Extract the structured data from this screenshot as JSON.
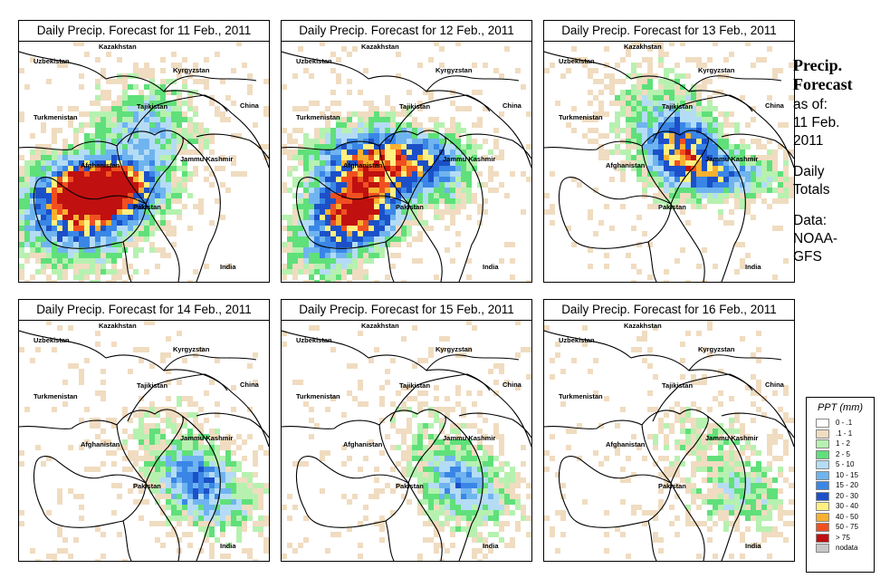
{
  "panels": [
    {
      "title": "Daily Precip. Forecast for  11 Feb., 2011",
      "intensity": 1.0,
      "focus": "west"
    },
    {
      "title": "Daily Precip. Forecast for  12 Feb., 2011",
      "intensity": 1.0,
      "focus": "southwest"
    },
    {
      "title": "Daily Precip. Forecast for  13 Feb., 2011",
      "intensity": 0.75,
      "focus": "northeast"
    },
    {
      "title": "Daily Precip. Forecast for  14 Feb., 2011",
      "intensity": 0.55,
      "focus": "east"
    },
    {
      "title": "Daily Precip. Forecast for  15 Feb., 2011",
      "intensity": 0.45,
      "focus": "east"
    },
    {
      "title": "Daily Precip. Forecast for  16 Feb., 2011",
      "intensity": 0.4,
      "focus": "southeast"
    }
  ],
  "map_labels": {
    "kazakhstan": "Kazakhstan",
    "uzbekistan": "Uzbekistan",
    "kyrgyzstan": "Kyrgyzstan",
    "tajikistan": "Tajikistan",
    "china": "China",
    "turkmenistan": "Turkmenistan",
    "afghanistan": "Afghanistan",
    "jammu_kashmir": "Jammu Kashmir",
    "pakistan": "Pakistan",
    "india": "India"
  },
  "side_info": {
    "title_line1": "Precip.",
    "title_line2": "Forecast",
    "asof_line1": "as of:",
    "asof_line2": "11 Feb.",
    "asof_line3": "2011",
    "totals_line1": "Daily",
    "totals_line2": "Totals",
    "data_line1": "Data:",
    "data_line2": "NOAA-",
    "data_line3": "GFS"
  },
  "legend": {
    "title": "PPT (mm)",
    "entries": [
      {
        "label": "0 - .1",
        "color": "#ffffff"
      },
      {
        "label": ".1 - 1",
        "color": "#f0dcc0"
      },
      {
        "label": "1 - 2",
        "color": "#b6f1b0"
      },
      {
        "label": "2 - 5",
        "color": "#5fe07a"
      },
      {
        "label": "5 - 10",
        "color": "#b4dcf5"
      },
      {
        "label": "10 - 15",
        "color": "#6fb4ef"
      },
      {
        "label": "15 - 20",
        "color": "#3a86e6"
      },
      {
        "label": "20 - 30",
        "color": "#1c50c8"
      },
      {
        "label": "30 - 40",
        "color": "#fff080"
      },
      {
        "label": "40 - 50",
        "color": "#f8b030"
      },
      {
        "label": "50 - 75",
        "color": "#f05020"
      },
      {
        "label": "> 75",
        "color": "#c01010"
      },
      {
        "label": "nodata",
        "color": "#c8c8c8"
      }
    ]
  }
}
